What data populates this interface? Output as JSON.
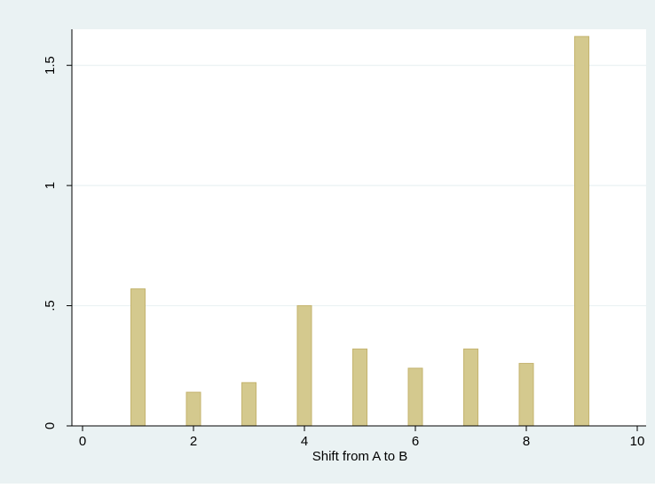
{
  "colors": {
    "outer_background": "#eaf2f3",
    "plot_background": "#ffffff",
    "gridline": "#eaf2f3",
    "bar_fill": "#d4c98e",
    "bar_stroke": "#c4b46f",
    "axis": "#000000"
  },
  "chart_data": {
    "type": "bar",
    "title": "",
    "xlabel": "Shift from A to B",
    "ylabel": "",
    "x": [
      1,
      2,
      3,
      4,
      5,
      6,
      7,
      8,
      9
    ],
    "values": [
      0.57,
      0.14,
      0.18,
      0.5,
      0.32,
      0.24,
      0.32,
      0.26,
      1.62
    ],
    "xlim": [
      0,
      10
    ],
    "ylim": [
      0,
      1.65
    ],
    "xticks": [
      0,
      2,
      4,
      6,
      8,
      10
    ],
    "xtick_labels": [
      "0",
      "2",
      "4",
      "6",
      "8",
      "10"
    ],
    "yticks": [
      0,
      0.5,
      1,
      1.5
    ],
    "ytick_labels": [
      "0",
      ".5",
      "1",
      "1.5"
    ],
    "grid": true,
    "legend": "none"
  }
}
